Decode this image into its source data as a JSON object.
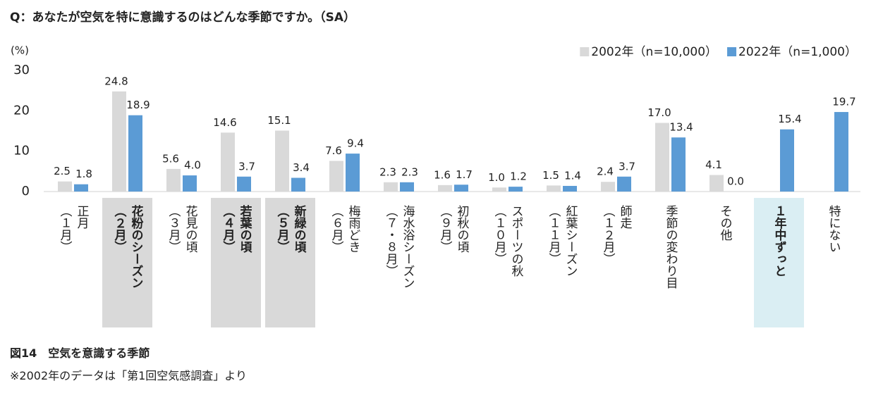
{
  "chart_data": {
    "type": "bar",
    "title": "Q：あなたが空気を特に意識するのはどんな季節ですか。（SA）",
    "y_label": "(%)",
    "caption": "図14　空気を意識する季節",
    "note": "※2002年のデータは「第1回空気感調査」より",
    "categories": [
      "正月\n（１月）",
      "花粉のシーズン\n（２月）",
      "花見の頃\n（３月）",
      "若葉の頃\n（４月）",
      "新緑の頃\n（５月）",
      "梅雨どき\n（６月）",
      "海水浴シーズン\n（７・８月）",
      "初秋の頃\n（９月）",
      "スポーツの秋\n（１０月）",
      "紅葉シーズン\n（１１月）",
      "師走\n（１２月）",
      "季節の変わり目",
      "その他",
      "１年中ずっと",
      "特にない"
    ],
    "series": [
      {
        "name": "2002年（n=10,000）",
        "color": "#d9d9d9",
        "values": [
          2.5,
          24.8,
          5.6,
          14.6,
          15.1,
          7.6,
          2.3,
          1.6,
          1.0,
          1.5,
          2.4,
          17.0,
          4.1,
          null,
          null
        ],
        "value_labels": [
          "2.5",
          "24.8",
          "5.6",
          "14.6",
          "15.1",
          "7.6",
          "2.3",
          "1.6",
          "1.0",
          "1.5",
          "2.4",
          "17.0",
          "4.1",
          null,
          null
        ]
      },
      {
        "name": "2022年（n=1,000）",
        "color": "#5b9bd5",
        "values": [
          1.8,
          18.9,
          4.0,
          3.7,
          3.4,
          9.4,
          2.3,
          1.7,
          1.2,
          1.4,
          3.7,
          13.4,
          0.0,
          15.4,
          19.7
        ],
        "value_labels": [
          "1.8",
          "18.9",
          "4.0",
          "3.7",
          "3.4",
          "9.4",
          "2.3",
          "1.7",
          "1.2",
          "1.4",
          "3.7",
          "13.4",
          "0.0",
          "15.4",
          "19.7"
        ]
      }
    ],
    "ylim": [
      0,
      30
    ],
    "yticks": [
      0,
      10,
      20,
      30
    ],
    "grid": false,
    "legend": "top-right"
  }
}
